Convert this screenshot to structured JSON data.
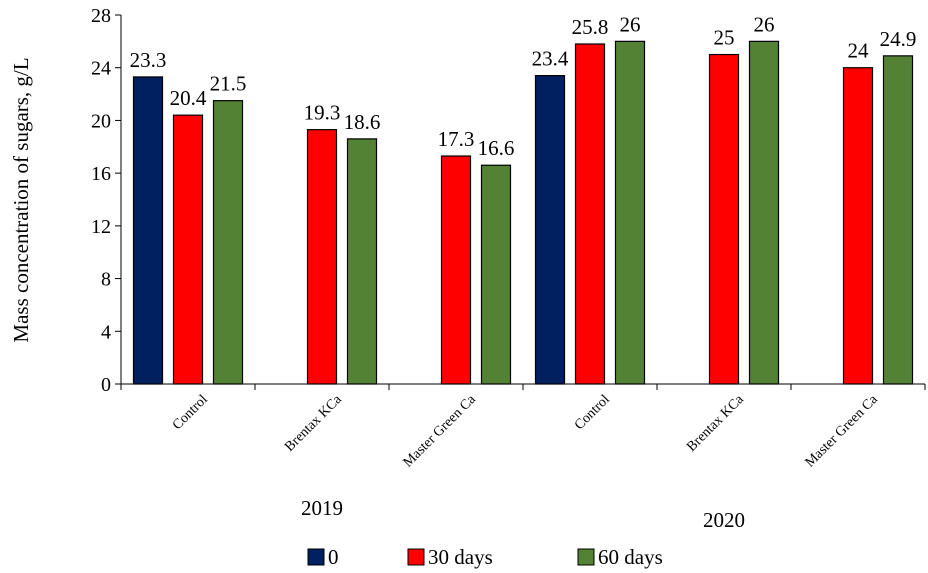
{
  "chart_data": {
    "type": "bar",
    "title": "",
    "ylabel": "Mass concentration of sugars, g/L",
    "xlabel": "",
    "ylim": [
      0,
      28
    ],
    "yticks": [
      0,
      4,
      8,
      12,
      16,
      20,
      24,
      28
    ],
    "grid": false,
    "legend_position": "bottom",
    "groups": [
      "2019",
      "2020"
    ],
    "categories": [
      "Control",
      "Brentax KCa",
      "Master Green Ca",
      "Control",
      "Brentax KCa",
      "Master Green Ca"
    ],
    "series": [
      {
        "name": "0",
        "color": "#002060",
        "values": [
          23.3,
          null,
          null,
          23.4,
          null,
          null
        ]
      },
      {
        "name": "30 days",
        "color": "#ff0000",
        "values": [
          20.4,
          19.3,
          17.3,
          25.8,
          25,
          24
        ]
      },
      {
        "name": "60 days",
        "color": "#548235",
        "values": [
          21.5,
          18.6,
          16.6,
          26,
          26,
          24.9
        ]
      }
    ]
  }
}
